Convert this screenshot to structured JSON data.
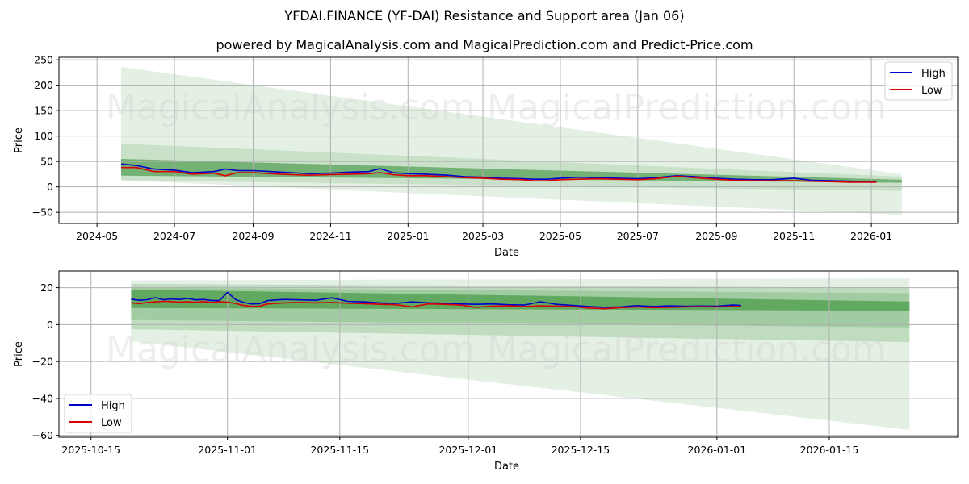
{
  "header": {
    "title": "YFDAI.FINANCE (YF-DAI) Resistance and Support area (Jan 06)",
    "subtitle": "powered by MagicalAnalysis.com and MagicalPrediction.com and Predict-Price.com"
  },
  "watermarks": [
    "MagicalAnalysis.com",
    "MagicalPrediction.com"
  ],
  "colors": {
    "high": "#0000cc",
    "low": "#dd0000",
    "band": "#2e8b2e",
    "grid": "#b0b0b0"
  },
  "chart_data": [
    {
      "type": "line",
      "title": "Full history",
      "xlabel": "Date",
      "ylabel": "Price",
      "ylim": [
        -72,
        255
      ],
      "yticks": [
        250,
        200,
        150,
        100,
        50,
        0,
        -50
      ],
      "xticks": [
        "2024-05",
        "2024-07",
        "2024-09",
        "2024-11",
        "2025-01",
        "2025-03",
        "2025-05",
        "2025-07",
        "2025-09",
        "2025-11",
        "2026-01"
      ],
      "grid": true,
      "legend": {
        "position": "upper right",
        "entries": [
          "High",
          "Low"
        ]
      },
      "x": [
        "2024-05-20",
        "2024-06-01",
        "2024-06-15",
        "2024-07-01",
        "2024-07-15",
        "2024-08-01",
        "2024-08-10",
        "2024-08-20",
        "2024-09-01",
        "2024-09-15",
        "2024-10-01",
        "2024-10-15",
        "2024-11-01",
        "2024-11-15",
        "2024-12-01",
        "2024-12-10",
        "2024-12-20",
        "2025-01-01",
        "2025-01-15",
        "2025-02-01",
        "2025-02-15",
        "2025-03-01",
        "2025-03-15",
        "2025-04-01",
        "2025-04-10",
        "2025-04-20",
        "2025-05-01",
        "2025-05-15",
        "2025-06-01",
        "2025-06-15",
        "2025-07-01",
        "2025-07-15",
        "2025-08-01",
        "2025-08-15",
        "2025-09-01",
        "2025-09-15",
        "2025-10-01",
        "2025-10-15",
        "2025-11-01",
        "2025-11-15",
        "2025-12-01",
        "2025-12-15",
        "2026-01-05"
      ],
      "series": [
        {
          "name": "High",
          "values": [
            45,
            42,
            35,
            33,
            28,
            30,
            35,
            32,
            32,
            30,
            28,
            26,
            27,
            29,
            30,
            36,
            28,
            26,
            25,
            23,
            20,
            19,
            17,
            16,
            15,
            15,
            17,
            19,
            18,
            17,
            16,
            18,
            22,
            20,
            17,
            15,
            14,
            14,
            17,
            13,
            12,
            11,
            10
          ]
        },
        {
          "name": "Low",
          "values": [
            38,
            38,
            30,
            30,
            25,
            27,
            22,
            28,
            28,
            26,
            24,
            23,
            24,
            25,
            26,
            28,
            24,
            22,
            22,
            20,
            18,
            17,
            15,
            14,
            12,
            12,
            14,
            15,
            16,
            15,
            14,
            16,
            21,
            18,
            15,
            13,
            12,
            12,
            12,
            11,
            10,
            9,
            9
          ]
        }
      ],
      "forecast_bands": {
        "x_start": "2024-05-20",
        "x_end": "2026-01-25",
        "outer_upper": [
          236,
          25
        ],
        "outer_lower": [
          13,
          -55
        ],
        "mid_upper": [
          85,
          20
        ],
        "mid_lower": [
          13,
          -8
        ],
        "inner_upper": [
          55,
          14
        ],
        "inner_lower": [
          22,
          8
        ]
      }
    },
    {
      "type": "line",
      "title": "Recent zoom",
      "xlabel": "Date",
      "ylabel": "Price",
      "ylim": [
        -61,
        29
      ],
      "yticks": [
        20,
        0,
        -20,
        -40,
        -60
      ],
      "xticks": [
        "2025-10-15",
        "2025-11-01",
        "2025-11-15",
        "2025-12-01",
        "2025-12-15",
        "2026-01-01",
        "2026-01-15"
      ],
      "grid": true,
      "legend": {
        "position": "lower left",
        "entries": [
          "High",
          "Low"
        ]
      },
      "x": [
        "2025-10-20",
        "2025-10-21",
        "2025-10-22",
        "2025-10-23",
        "2025-10-24",
        "2025-10-25",
        "2025-10-26",
        "2025-10-27",
        "2025-10-28",
        "2025-10-29",
        "2025-10-30",
        "2025-10-31",
        "2025-11-01",
        "2025-11-02",
        "2025-11-03",
        "2025-11-04",
        "2025-11-05",
        "2025-11-06",
        "2025-11-08",
        "2025-11-10",
        "2025-11-12",
        "2025-11-14",
        "2025-11-16",
        "2025-11-18",
        "2025-11-20",
        "2025-11-22",
        "2025-11-24",
        "2025-11-26",
        "2025-11-28",
        "2025-11-30",
        "2025-12-02",
        "2025-12-04",
        "2025-12-06",
        "2025-12-08",
        "2025-12-10",
        "2025-12-12",
        "2025-12-14",
        "2025-12-16",
        "2025-12-18",
        "2025-12-20",
        "2025-12-22",
        "2025-12-24",
        "2025-12-26",
        "2025-12-28",
        "2025-12-30",
        "2026-01-01",
        "2026-01-03",
        "2026-01-04"
      ],
      "series": [
        {
          "name": "High",
          "values": [
            13.8,
            13.2,
            13.5,
            14.6,
            13.5,
            13.9,
            13.6,
            14.2,
            13.4,
            13.6,
            13.1,
            13.0,
            17.5,
            13.6,
            12.0,
            11.2,
            11.3,
            13.0,
            13.6,
            13.4,
            13.2,
            14.5,
            12.6,
            12.3,
            11.8,
            11.5,
            12.3,
            11.8,
            11.6,
            11.2,
            11.0,
            11.2,
            10.8,
            10.6,
            12.4,
            11.0,
            10.4,
            9.8,
            9.4,
            9.6,
            10.3,
            9.8,
            10.2,
            10.0,
            10.1,
            10.0,
            10.6,
            10.4
          ]
        },
        {
          "name": "Low",
          "values": [
            11.8,
            11.4,
            12.0,
            12.3,
            12.6,
            12.5,
            12.2,
            12.4,
            12.1,
            12.5,
            12.0,
            12.4,
            12.2,
            11.5,
            10.4,
            9.9,
            10.0,
            11.2,
            11.8,
            12.0,
            11.8,
            12.0,
            11.6,
            11.4,
            11.0,
            10.8,
            9.6,
            11.2,
            11.0,
            10.6,
            9.4,
            10.0,
            10.2,
            9.8,
            10.2,
            10.0,
            9.8,
            9.0,
            8.6,
            9.2,
            9.6,
            9.2,
            9.4,
            9.6,
            9.7,
            9.6,
            9.8,
            9.8
          ]
        }
      ],
      "forecast_bands": {
        "x_start": "2025-10-20",
        "x_end": "2026-01-25",
        "outer_upper": [
          24,
          25
        ],
        "outer_lower": [
          -9,
          -57
        ],
        "band2_upper": [
          22,
          20
        ],
        "band2_lower": [
          -2.5,
          -9.5
        ],
        "band3_upper": [
          20,
          17
        ],
        "band3_lower": [
          2.5,
          -1.5
        ],
        "inner_upper": [
          19,
          12.5
        ],
        "inner_lower": [
          9,
          7.5
        ]
      }
    }
  ]
}
